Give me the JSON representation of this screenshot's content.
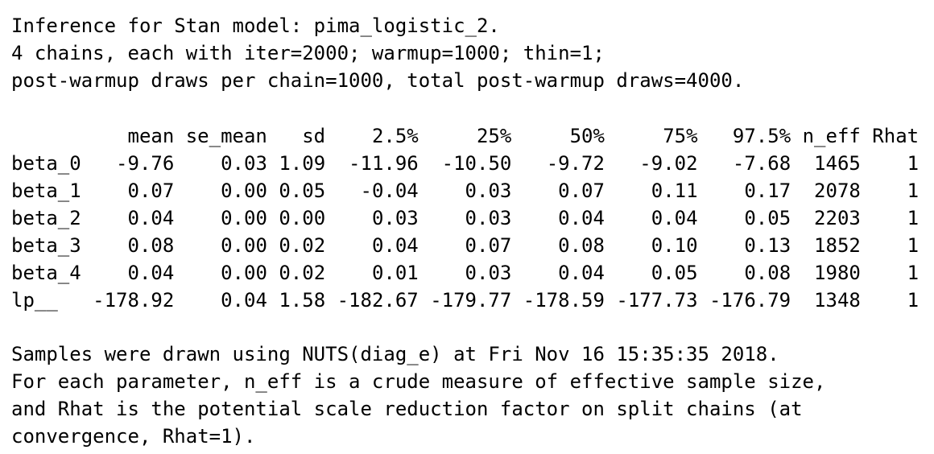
{
  "header_lines": [
    "Inference for Stan model: pima_logistic_2.",
    "4 chains, each with iter=2000; warmup=1000; thin=1;",
    "post-warmup draws per chain=1000, total post-warmup draws=4000."
  ],
  "table": {
    "columns": [
      "mean",
      "se_mean",
      "sd",
      "2.5%",
      "25%",
      "50%",
      "75%",
      "97.5%",
      "n_eff",
      "Rhat"
    ],
    "rows": [
      {
        "name": "beta_0",
        "values": [
          "-9.76",
          "0.03",
          "1.09",
          "-11.96",
          "-10.50",
          "-9.72",
          "-9.02",
          "-7.68",
          "1465",
          "1"
        ]
      },
      {
        "name": "beta_1",
        "values": [
          "0.07",
          "0.00",
          "0.05",
          "-0.04",
          "0.03",
          "0.07",
          "0.11",
          "0.17",
          "2078",
          "1"
        ]
      },
      {
        "name": "beta_2",
        "values": [
          "0.04",
          "0.00",
          "0.00",
          "0.03",
          "0.03",
          "0.04",
          "0.04",
          "0.05",
          "2203",
          "1"
        ]
      },
      {
        "name": "beta_3",
        "values": [
          "0.08",
          "0.00",
          "0.02",
          "0.04",
          "0.07",
          "0.08",
          "0.10",
          "0.13",
          "1852",
          "1"
        ]
      },
      {
        "name": "beta_4",
        "values": [
          "0.04",
          "0.00",
          "0.02",
          "0.01",
          "0.03",
          "0.04",
          "0.05",
          "0.08",
          "1980",
          "1"
        ]
      },
      {
        "name": "lp__",
        "values": [
          "-178.92",
          "0.04",
          "1.58",
          "-182.67",
          "-179.77",
          "-178.59",
          "-177.73",
          "-176.79",
          "1348",
          "1"
        ]
      }
    ]
  },
  "footer_lines": [
    "Samples were drawn using NUTS(diag_e) at Fri Nov 16 15:35:35 2018.",
    "For each parameter, n_eff is a crude measure of effective sample size,",
    "and Rhat is the potential scale reduction factor on split chains (at",
    "convergence, Rhat=1)."
  ]
}
